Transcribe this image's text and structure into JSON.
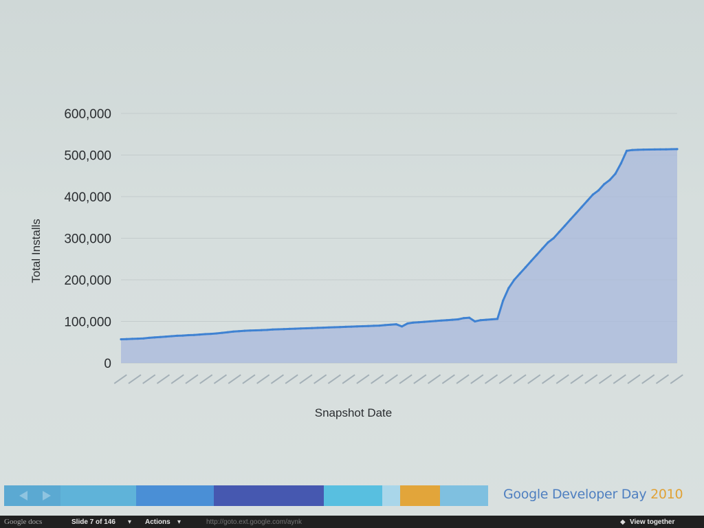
{
  "chart_data": {
    "type": "area",
    "xlabel": "Snapshot Date",
    "ylabel": "Total Installs",
    "ylim": [
      0,
      600000
    ],
    "yticks": [
      "0",
      "100,000",
      "200,000",
      "300,000",
      "400,000",
      "500,000",
      "600,000"
    ],
    "grid": true,
    "colors": {
      "line": "#3f82d2",
      "fill": "#a8b8dc"
    },
    "series": [
      {
        "values": [
          57000,
          57500,
          58000,
          58500,
          59000,
          60500,
          61500,
          62500,
          63500,
          64500,
          65500,
          66000,
          67000,
          67500,
          68500,
          69500,
          70000,
          71000,
          72500,
          74000,
          75500,
          76500,
          77500,
          78000,
          78500,
          79000,
          79500,
          80500,
          81000,
          81500,
          82000,
          82500,
          83000,
          83500,
          84000,
          84500,
          85000,
          85500,
          86000,
          86500,
          87000,
          87500,
          88000,
          88500,
          89000,
          89500,
          90000,
          91000,
          92000,
          93000,
          88000,
          95000,
          97000,
          98000,
          99000,
          100000,
          101000,
          102000,
          103000,
          104000,
          105000,
          108000,
          109000,
          100000,
          103000,
          104000,
          105000,
          106000,
          150000,
          180000,
          200000,
          215000,
          230000,
          245000,
          260000,
          275000,
          290000,
          300000,
          315000,
          330000,
          345000,
          360000,
          375000,
          390000,
          405000,
          415000,
          430000,
          440000,
          455000,
          480000,
          510000,
          512000,
          512500,
          513000,
          513200,
          513400,
          513600,
          513800,
          514000,
          514200
        ]
      }
    ]
  },
  "footer": {
    "brand_text": "Google Developer Day",
    "brand_year": "2010",
    "band_colors": [
      "#5fb3d9",
      "#4a8fd6",
      "#4658b0",
      "#58bfe0",
      "#e2a53a",
      "#7fc0e0"
    ]
  },
  "docs_bar": {
    "logo": "Google docs",
    "slide": "Slide 7 of 146",
    "actions": "Actions",
    "url": "http://goto.ext.google.com/aynk",
    "view": "View together"
  }
}
